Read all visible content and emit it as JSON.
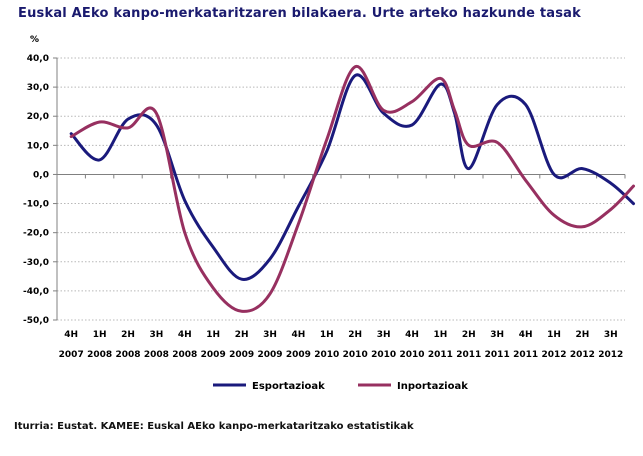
{
  "chart_data": {
    "type": "line",
    "title": "Euskal AEko kanpo-merkataritzaren bilakaera. Urte arteko hazkunde tasak",
    "ylabel": "%",
    "ylim": [
      -50,
      40
    ],
    "yticks": [
      "40,0",
      "30,0",
      "20,0",
      "10,0",
      "0,0",
      "-10,0",
      "-20,0",
      "-30,0",
      "-40,0",
      "-50,0"
    ],
    "ytick_values": [
      40,
      30,
      20,
      10,
      0,
      -10,
      -20,
      -30,
      -40,
      -50
    ],
    "categories": [
      {
        "q": "4H",
        "y": "2007"
      },
      {
        "q": "1H",
        "y": "2008"
      },
      {
        "q": "2H",
        "y": "2008"
      },
      {
        "q": "3H",
        "y": "2008"
      },
      {
        "q": "4H",
        "y": "2008"
      },
      {
        "q": "1H",
        "y": "2009"
      },
      {
        "q": "2H",
        "y": "2009"
      },
      {
        "q": "3H",
        "y": "2009"
      },
      {
        "q": "4H",
        "y": "2009"
      },
      {
        "q": "1H",
        "y": "2010"
      },
      {
        "q": "2H",
        "y": "2010"
      },
      {
        "q": "3H",
        "y": "2010"
      },
      {
        "q": "4H",
        "y": "2010"
      },
      {
        "q": "1H",
        "y": "2011"
      },
      {
        "q": "2H",
        "y": "2011"
      },
      {
        "q": "3H",
        "y": "2011"
      },
      {
        "q": "4H",
        "y": "2011"
      },
      {
        "q": "1H",
        "y": "2012"
      },
      {
        "q": "2H",
        "y": "2012"
      },
      {
        "q": "3H",
        "y": "2012"
      }
    ],
    "series": [
      {
        "name": "Esportazioak",
        "color": "#1a1a7c",
        "x": [
          0,
          1,
          2,
          3,
          4,
          5,
          6,
          7,
          8,
          9,
          10,
          11,
          12,
          13,
          13.5,
          14,
          15,
          16,
          17,
          18,
          19,
          19.8
        ],
        "values": [
          14,
          5,
          19,
          17,
          -9,
          -25,
          -36,
          -29,
          -11,
          8,
          34,
          21,
          17,
          31,
          21,
          2,
          24,
          24,
          0,
          2,
          -3,
          -10
        ]
      },
      {
        "name": "Inportazioak",
        "color": "#973060",
        "x": [
          0,
          1,
          2,
          3,
          4,
          5,
          6,
          7,
          8,
          9,
          10,
          11,
          12,
          13,
          13.5,
          14,
          15,
          16,
          17,
          18,
          19,
          19.8
        ],
        "values": [
          13,
          18,
          16,
          21,
          -20,
          -39,
          -47,
          -41,
          -17,
          12,
          37,
          22,
          25,
          33,
          22,
          10,
          11,
          -2,
          -14,
          -18,
          -12,
          -4
        ]
      }
    ],
    "legend_position": "bottom",
    "source": "Iturria: Eustat. KAMEE: Euskal AEko kanpo-merkataritzako estatistikak"
  }
}
